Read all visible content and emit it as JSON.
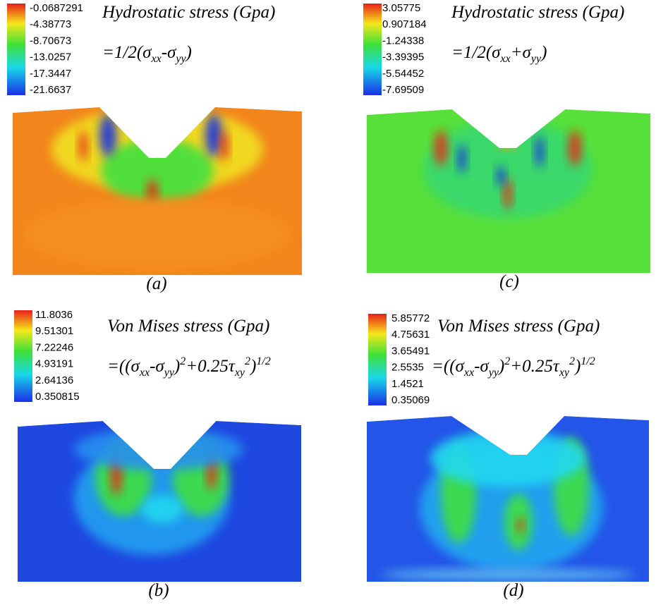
{
  "panels": [
    {
      "legend": [
        -0.0687291,
        -4.38773,
        -8.70673,
        -13.0257,
        -17.3447,
        -21.6637
      ],
      "title": "Hydrostatic stress (Gpa)",
      "formula": [
        "=1/2(σ",
        "xx",
        "-σ",
        "yy",
        ")"
      ],
      "caption": "(a)"
    },
    {
      "legend": [
        3.05775,
        0.907184,
        -1.24338,
        -3.39395,
        -5.54452,
        -7.69509
      ],
      "title": "Hydrostatic stress (Gpa)",
      "formula": [
        "=1/2(σ",
        "xx",
        "+σ",
        "yy",
        ")"
      ],
      "caption": "(c)"
    },
    {
      "legend": [
        11.8036,
        9.51301,
        7.22246,
        4.93191,
        2.64136,
        0.350815
      ],
      "title": "Von Mises stress (Gpa)",
      "formula": [
        "=((σ",
        "xx",
        "-σ",
        "yy",
        ")",
        "2",
        "+0.25τ",
        "xy",
        "2",
        ")",
        "1/2"
      ],
      "caption": "(b)"
    },
    {
      "legend": [
        5.85772,
        4.75631,
        3.65491,
        2.5535,
        1.4521,
        0.35069
      ],
      "title": "Von Mises stress (Gpa)",
      "formula": [
        "=((σ",
        "xx",
        "-σ",
        "yy",
        ")",
        "2",
        "+0.25τ",
        "xy",
        "2",
        ")",
        "1/2"
      ],
      "caption": "(d)"
    }
  ]
}
